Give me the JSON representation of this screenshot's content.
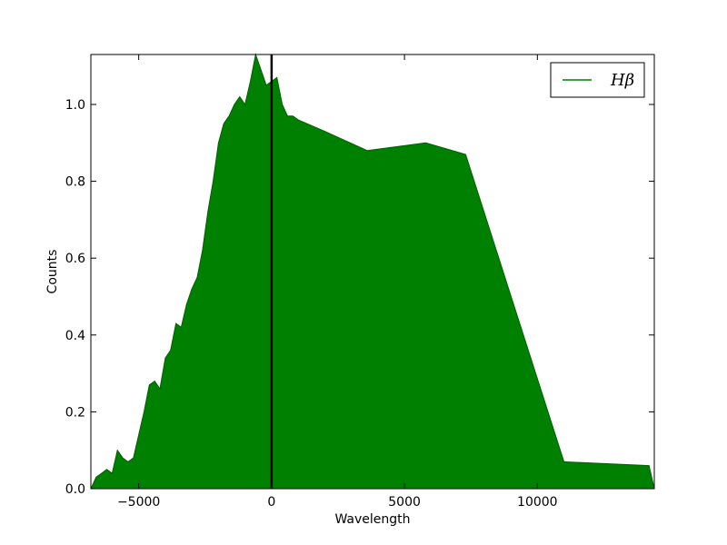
{
  "chart_data": {
    "type": "area",
    "xlabel": "Wavelength",
    "ylabel": "Counts",
    "xlim": [
      -6800,
      14400
    ],
    "ylim": [
      0,
      1.13
    ],
    "xticks": [
      -5000,
      0,
      5000,
      10000
    ],
    "xtick_labels": [
      "−5000",
      "0",
      "5000",
      "10000"
    ],
    "yticks": [
      0.0,
      0.2,
      0.4,
      0.6,
      0.8,
      1.0
    ],
    "ytick_labels": [
      "0.0",
      "0.2",
      "0.4",
      "0.6",
      "0.8",
      "1.0"
    ],
    "grid": false,
    "legend": {
      "position": "top-right"
    },
    "series": [
      {
        "name": "Hβ",
        "color": "#008000",
        "x": [
          -6800,
          -6600,
          -6400,
          -6200,
          -6000,
          -5800,
          -5600,
          -5400,
          -5200,
          -5000,
          -4800,
          -4600,
          -4400,
          -4200,
          -4000,
          -3800,
          -3600,
          -3400,
          -3200,
          -3000,
          -2800,
          -2600,
          -2400,
          -2200,
          -2000,
          -1800,
          -1600,
          -1400,
          -1200,
          -1000,
          -800,
          -600,
          -400,
          -200,
          0,
          200,
          400,
          600,
          800,
          1000,
          2000,
          3600,
          5800,
          7300,
          11000,
          14200,
          14400
        ],
        "y": [
          0.0,
          0.03,
          0.04,
          0.05,
          0.04,
          0.1,
          0.08,
          0.07,
          0.08,
          0.14,
          0.2,
          0.27,
          0.28,
          0.26,
          0.34,
          0.36,
          0.43,
          0.42,
          0.48,
          0.52,
          0.55,
          0.62,
          0.72,
          0.8,
          0.9,
          0.95,
          0.97,
          1.0,
          1.02,
          1.0,
          1.06,
          1.13,
          1.09,
          1.05,
          1.06,
          1.07,
          1.0,
          0.97,
          0.97,
          0.96,
          0.93,
          0.88,
          0.9,
          0.87,
          0.07,
          0.06,
          0.0
        ]
      }
    ],
    "vline": {
      "x": 0,
      "color": "#000000"
    }
  }
}
